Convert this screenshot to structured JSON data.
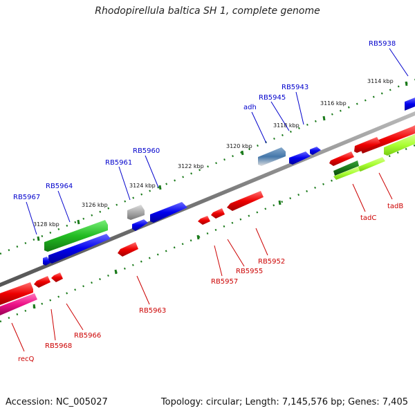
{
  "title": "Rhodopirellula baltica SH 1, complete genome",
  "footer": {
    "accession": "Accession: NC_005027",
    "summary": "Topology: circular; Length: 7,145,576 bp; Genes: 7,405"
  },
  "colors": {
    "backbone": "#888888",
    "tick": "#1a7a1a",
    "label_forward": "#0000cc",
    "label_reverse": "#cc0000",
    "forward": "#0000ff",
    "reverse": "#ff0000",
    "green": "#22bb22",
    "dark_green": "#1a7a1a",
    "lime": "#aaff33",
    "magenta": "#ee1188",
    "steel": "#4477aa",
    "grey": "#aaaaaa"
  },
  "ruler": [
    "3114 kbp",
    "3116 kbp",
    "3118 kbp",
    "3120 kbp",
    "3122 kbp",
    "3124 kbp",
    "3126 kbp",
    "3128 kbp"
  ],
  "gene_labels_forward": [
    "RB5938",
    "RB5943",
    "RB5945",
    "adh",
    "RB5960",
    "RB5961",
    "RB5964",
    "RB5967"
  ],
  "gene_labels_reverse": [
    "tadB",
    "tadC",
    "RB5952",
    "RB5955",
    "RB5957",
    "RB5963",
    "RB5966",
    "RB5968",
    "recQ"
  ]
}
